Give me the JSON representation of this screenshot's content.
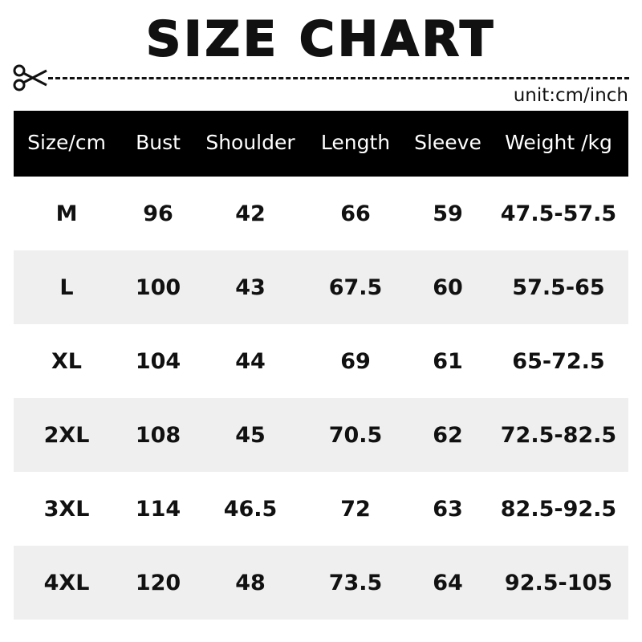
{
  "title": "SIZE CHART",
  "unit_label": "unit:cm/inch",
  "icons": {
    "cut": "scissors-icon"
  },
  "colors": {
    "header_bg": "#000000",
    "header_text": "#ffffff",
    "alt_row_bg": "#efefef"
  },
  "table": {
    "headers": [
      "Size/cm",
      "Bust",
      "Shoulder",
      "Length",
      "Sleeve",
      "Weight /kg"
    ],
    "rows": [
      [
        "M",
        "96",
        "42",
        "66",
        "59",
        "47.5-57.5"
      ],
      [
        "L",
        "100",
        "43",
        "67.5",
        "60",
        "57.5-65"
      ],
      [
        "XL",
        "104",
        "44",
        "69",
        "61",
        "65-72.5"
      ],
      [
        "2XL",
        "108",
        "45",
        "70.5",
        "62",
        "72.5-82.5"
      ],
      [
        "3XL",
        "114",
        "46.5",
        "72",
        "63",
        "82.5-92.5"
      ],
      [
        "4XL",
        "120",
        "48",
        "73.5",
        "64",
        "92.5-105"
      ]
    ]
  }
}
